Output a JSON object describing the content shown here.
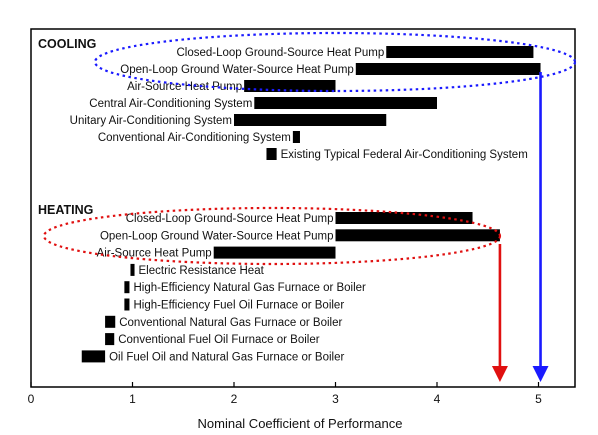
{
  "chart_data": {
    "type": "bar",
    "orientation": "horizontal-range",
    "title": "",
    "xlabel": "Nominal Coefficient of Performance",
    "ylabel": "",
    "xlim": [
      0,
      5.4
    ],
    "x_ticks": [
      "0",
      "1",
      "2",
      "3",
      "4",
      "5"
    ],
    "grid": false,
    "legend": "none",
    "sections": [
      {
        "name": "COOLING",
        "items": [
          {
            "label": "Closed-Loop Ground-Source Heat Pump",
            "start": 3.5,
            "end": 4.95
          },
          {
            "label": "Open-Loop Ground Water-Source Heat Pump",
            "start": 3.2,
            "end": 5.02
          },
          {
            "label": "Air-Source Heat Pump",
            "start": 2.1,
            "end": 3.0
          },
          {
            "label": "Central Air-Conditioning System",
            "start": 2.2,
            "end": 4.0
          },
          {
            "label": "Unitary Air-Conditioning System",
            "start": 2.0,
            "end": 3.5
          },
          {
            "label": "Conventional Air-Conditioning System",
            "start": 2.58,
            "end": 2.65
          },
          {
            "label": "Existing Typical Federal Air-Conditioning System",
            "start": 2.32,
            "end": 2.42
          }
        ]
      },
      {
        "name": "HEATING",
        "items": [
          {
            "label": "Closed-Loop Ground-Source Heat Pump",
            "start": 3.0,
            "end": 4.35
          },
          {
            "label": "Open-Loop Ground Water-Source Heat Pump",
            "start": 3.0,
            "end": 4.62
          },
          {
            "label": "Air-Source Heat Pump",
            "start": 1.8,
            "end": 3.0
          },
          {
            "label": "Electric Resistance Heat",
            "start": 0.98,
            "end": 1.02
          },
          {
            "label": "High-Efficiency Natural Gas Furnace or Boiler",
            "start": 0.92,
            "end": 0.97
          },
          {
            "label": "High-Efficiency Fuel Oil Furnace or Boiler",
            "start": 0.92,
            "end": 0.97
          },
          {
            "label": "Conventional Natural Gas Furnace or Boiler",
            "start": 0.73,
            "end": 0.83
          },
          {
            "label": "Conventional Fuel Oil Furnace or Boiler",
            "start": 0.73,
            "end": 0.82
          },
          {
            "label": "Oil Fuel Oil and Natural Gas Furnace or Boiler",
            "start": 0.5,
            "end": 0.73
          }
        ]
      }
    ],
    "annotations": [
      {
        "type": "dotted-ellipse",
        "color": "#1a1aff",
        "encloses": "COOLING ground-source heat pumps"
      },
      {
        "type": "dotted-ellipse",
        "color": "#e01010",
        "encloses": "HEATING ground-source heat pumps"
      },
      {
        "type": "arrow",
        "color": "#e01010",
        "points_to_x": 4.62
      },
      {
        "type": "arrow",
        "color": "#1a1aff",
        "points_to_x": 5.02
      }
    ],
    "colors": {
      "bar": "#000000",
      "cooling_highlight": "#1a1aff",
      "heating_highlight": "#e01010"
    }
  }
}
